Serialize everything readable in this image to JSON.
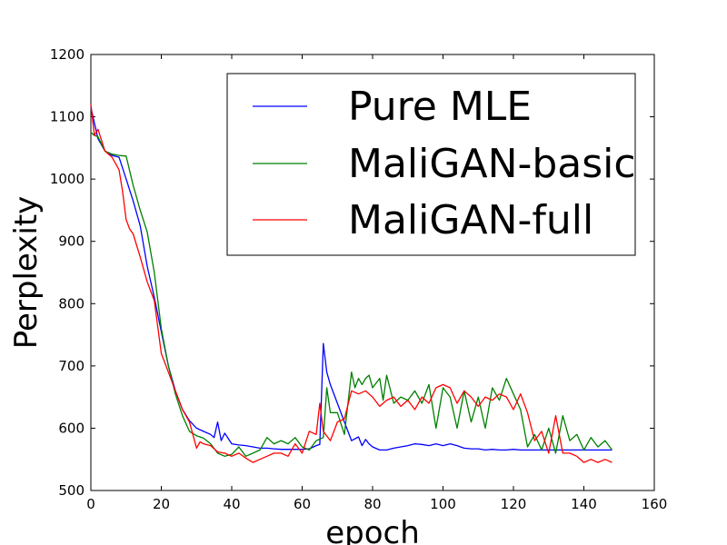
{
  "chart_data": {
    "type": "line",
    "title": "",
    "xlabel": "epoch",
    "ylabel": "Perplexity",
    "xlim": [
      0,
      160
    ],
    "ylim": [
      500,
      1200
    ],
    "xticks": [
      0,
      20,
      40,
      60,
      80,
      100,
      120,
      140,
      160
    ],
    "yticks": [
      500,
      600,
      700,
      800,
      900,
      1000,
      1100,
      1200
    ],
    "grid": false,
    "legend_position": "top-right",
    "series": [
      {
        "name": "Pure MLE",
        "color": "#0000ff",
        "x": [
          0,
          2,
          4,
          6,
          8,
          10,
          12,
          14,
          16,
          18,
          20,
          22,
          24,
          26,
          28,
          30,
          32,
          34,
          35,
          36,
          37,
          38,
          40,
          42,
          44,
          46,
          48,
          50,
          52,
          54,
          56,
          58,
          60,
          62,
          64,
          65,
          66,
          67,
          68,
          70,
          72,
          74,
          76,
          77,
          78,
          79,
          80,
          82,
          84,
          86,
          88,
          90,
          92,
          94,
          96,
          98,
          100,
          102,
          104,
          106,
          108,
          110,
          112,
          114,
          116,
          118,
          120,
          122,
          124,
          126,
          128,
          130,
          132,
          134,
          136,
          138,
          140,
          142,
          144,
          146,
          148
        ],
        "y": [
          1115,
          1065,
          1045,
          1038,
          1035,
          1000,
          965,
          925,
          860,
          810,
          755,
          700,
          660,
          630,
          612,
          600,
          595,
          590,
          585,
          610,
          580,
          592,
          575,
          573,
          572,
          570,
          568,
          568,
          567,
          566,
          566,
          566,
          566,
          567,
          572,
          574,
          736,
          690,
          670,
          640,
          610,
          580,
          586,
          572,
          582,
          575,
          570,
          565,
          565,
          568,
          570,
          572,
          575,
          574,
          572,
          575,
          572,
          575,
          572,
          568,
          567,
          567,
          565,
          566,
          565,
          565,
          566,
          565,
          565,
          565,
          565,
          565,
          565,
          565,
          565,
          565,
          565,
          565,
          565,
          565,
          565
        ]
      },
      {
        "name": "MaliGAN-basic",
        "color": "#008000",
        "x": [
          0,
          1,
          2,
          4,
          6,
          8,
          10,
          12,
          14,
          16,
          18,
          20,
          22,
          24,
          26,
          28,
          30,
          32,
          34,
          36,
          38,
          40,
          42,
          44,
          46,
          48,
          50,
          52,
          54,
          56,
          58,
          60,
          62,
          64,
          66,
          67,
          68,
          70,
          72,
          74,
          75,
          76,
          77,
          78,
          79,
          80,
          82,
          83,
          84,
          86,
          88,
          90,
          92,
          94,
          96,
          98,
          100,
          102,
          104,
          106,
          108,
          110,
          112,
          114,
          116,
          118,
          120,
          122,
          124,
          126,
          128,
          130,
          132,
          134,
          136,
          138,
          140,
          142,
          144,
          146,
          148
        ],
        "y": [
          1075,
          1070,
          1068,
          1045,
          1040,
          1038,
          1037,
          990,
          950,
          915,
          850,
          760,
          700,
          655,
          620,
          595,
          588,
          584,
          575,
          560,
          555,
          558,
          570,
          555,
          560,
          565,
          585,
          575,
          580,
          575,
          585,
          570,
          565,
          580,
          585,
          665,
          625,
          625,
          590,
          690,
          665,
          680,
          670,
          680,
          685,
          665,
          680,
          645,
          685,
          640,
          650,
          645,
          660,
          640,
          670,
          600,
          665,
          650,
          600,
          660,
          610,
          650,
          600,
          665,
          645,
          680,
          655,
          630,
          570,
          590,
          565,
          600,
          560,
          620,
          580,
          590,
          565,
          585,
          570,
          580,
          565
        ]
      },
      {
        "name": "MaliGAN-full",
        "color": "#ff0000",
        "x": [
          0,
          1,
          2,
          4,
          6,
          8,
          9,
          10,
          11,
          12,
          14,
          16,
          18,
          20,
          22,
          24,
          26,
          28,
          30,
          31,
          32,
          34,
          36,
          38,
          40,
          42,
          44,
          46,
          48,
          50,
          52,
          54,
          56,
          58,
          60,
          62,
          64,
          65,
          66,
          68,
          70,
          72,
          74,
          76,
          78,
          80,
          82,
          84,
          86,
          88,
          90,
          92,
          94,
          96,
          98,
          100,
          102,
          104,
          106,
          108,
          110,
          112,
          114,
          116,
          118,
          120,
          122,
          124,
          126,
          128,
          130,
          132,
          134,
          136,
          138,
          140,
          142,
          144,
          146,
          148
        ],
        "y": [
          1120,
          1070,
          1080,
          1045,
          1035,
          1015,
          980,
          935,
          920,
          912,
          875,
          835,
          805,
          720,
          690,
          660,
          630,
          610,
          568,
          578,
          575,
          572,
          562,
          560,
          555,
          560,
          552,
          545,
          550,
          555,
          560,
          560,
          555,
          575,
          560,
          595,
          590,
          640,
          595,
          580,
          610,
          615,
          660,
          655,
          660,
          650,
          635,
          645,
          650,
          635,
          645,
          630,
          650,
          640,
          665,
          670,
          665,
          640,
          660,
          650,
          635,
          650,
          645,
          655,
          650,
          630,
          655,
          625,
          580,
          595,
          560,
          620,
          560,
          560,
          555,
          545,
          550,
          545,
          550,
          545
        ]
      }
    ]
  }
}
